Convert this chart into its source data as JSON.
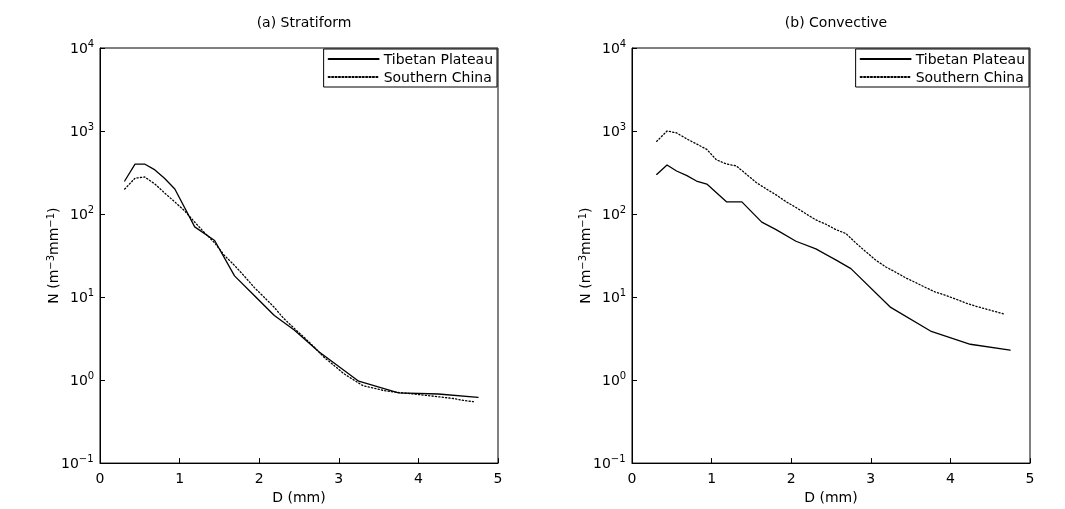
{
  "chart_data": [
    {
      "type": "line",
      "title": "(a) Stratiform",
      "xlabel": "D (mm)",
      "ylabel": "N (m$^{−3}$mm$^{−1}$)",
      "log": "y",
      "grid": false,
      "legend": "top right",
      "marker": "none",
      "xlim": [
        0,
        5
      ],
      "xticks": [
        0,
        1,
        2,
        3,
        4,
        5
      ],
      "ylim": [
        0.1,
        10000
      ],
      "yticks": [
        {
          "value": 0.1,
          "label": "10$^{−1}$"
        },
        {
          "value": 1,
          "label": "10$^{0}$"
        },
        {
          "value": 10,
          "label": "10$^{1}$"
        },
        {
          "value": 100,
          "label": "10$^{2}$"
        },
        {
          "value": 1000,
          "label": "10$^{3}$"
        },
        {
          "value": 10000,
          "label": "10$^{4}$"
        }
      ],
      "series": [
        {
          "name": "Tibetan Plateau",
          "color": "#000000",
          "line_style": "solid",
          "x": [
            0.31,
            0.44,
            0.56,
            0.69,
            0.81,
            0.94,
            1.19,
            1.44,
            1.69,
            2.19,
            2.44,
            2.75,
            3.25,
            3.75,
            4.25,
            4.75
          ],
          "values": [
            250,
            400,
            400,
            340,
            270,
            200,
            70,
            48,
            18,
            6,
            4,
            2.2,
            0.97,
            0.7,
            0.68,
            0.62
          ]
        },
        {
          "name": "Southern China",
          "color": "#000000",
          "line_style": "dotted",
          "x": [
            0.31,
            0.44,
            0.56,
            0.69,
            0.81,
            0.94,
            1.06,
            1.19,
            1.31,
            1.44,
            1.56,
            1.69,
            1.81,
            1.94,
            2.06,
            2.19,
            2.31,
            2.44,
            2.56,
            2.69,
            2.81,
            2.94,
            3.06,
            3.19,
            3.31,
            3.44,
            3.56,
            3.69,
            3.81,
            3.94,
            4.06,
            4.19,
            4.31,
            4.44,
            4.56,
            4.69
          ],
          "values": [
            200,
            270,
            280,
            230,
            180,
            140,
            110,
            80,
            60,
            45,
            32,
            24,
            18,
            13,
            10,
            7.5,
            5.5,
            4.2,
            3.3,
            2.5,
            1.9,
            1.5,
            1.2,
            1.0,
            0.85,
            0.8,
            0.75,
            0.72,
            0.7,
            0.68,
            0.66,
            0.64,
            0.62,
            0.6,
            0.57,
            0.55
          ]
        }
      ]
    },
    {
      "type": "line",
      "title": "(b) Convective",
      "xlabel": "D (mm)",
      "ylabel": "N (m$^{−3}$mm$^{−1}$)",
      "log": "y",
      "grid": false,
      "legend": "top right",
      "marker": "none",
      "xlim": [
        0,
        5
      ],
      "xticks": [
        0,
        1,
        2,
        3,
        4,
        5
      ],
      "ylim": [
        0.1,
        10000
      ],
      "yticks": [
        {
          "value": 0.1,
          "label": "10$^{−1}$"
        },
        {
          "value": 1,
          "label": "10$^{0}$"
        },
        {
          "value": 10,
          "label": "10$^{1}$"
        },
        {
          "value": 100,
          "label": "10$^{2}$"
        },
        {
          "value": 1000,
          "label": "10$^{3}$"
        },
        {
          "value": 10000,
          "label": "10$^{4}$"
        }
      ],
      "series": [
        {
          "name": "Tibetan Plateau",
          "color": "#000000",
          "line_style": "solid",
          "x": [
            0.31,
            0.44,
            0.56,
            0.69,
            0.81,
            0.94,
            1.19,
            1.38,
            1.63,
            1.81,
            2.06,
            2.31,
            2.56,
            2.75,
            3.25,
            3.75,
            4.25,
            4.75
          ],
          "values": [
            300,
            390,
            330,
            290,
            250,
            230,
            140,
            140,
            80,
            65,
            47,
            38,
            28,
            22,
            7.5,
            3.9,
            2.7,
            2.3
          ]
        },
        {
          "name": "Southern China",
          "color": "#000000",
          "line_style": "dotted",
          "x": [
            0.31,
            0.44,
            0.56,
            0.69,
            0.81,
            0.94,
            1.06,
            1.19,
            1.31,
            1.44,
            1.56,
            1.69,
            1.81,
            1.94,
            2.06,
            2.19,
            2.31,
            2.44,
            2.56,
            2.69,
            2.81,
            2.94,
            3.06,
            3.19,
            3.31,
            3.44,
            3.56,
            3.69,
            3.81,
            3.94,
            4.06,
            4.19,
            4.31,
            4.44,
            4.56,
            4.69
          ],
          "values": [
            750,
            1000,
            950,
            800,
            700,
            600,
            450,
            400,
            380,
            300,
            240,
            200,
            170,
            140,
            120,
            100,
            85,
            75,
            65,
            58,
            45,
            35,
            28,
            23,
            20,
            17,
            15,
            13,
            11.5,
            10.5,
            9.5,
            8.5,
            7.8,
            7.2,
            6.7,
            6.2
          ]
        }
      ]
    }
  ]
}
